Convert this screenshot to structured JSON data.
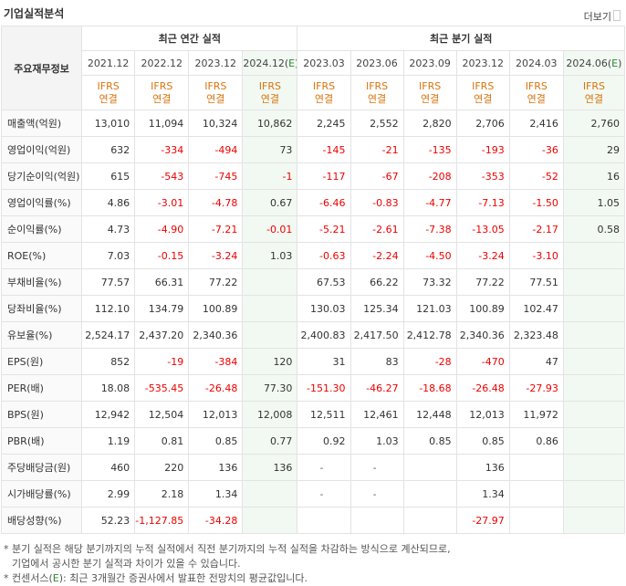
{
  "header": {
    "title": "기업실적분석",
    "more": "더보기"
  },
  "table": {
    "row_header": "주요재무정보",
    "annual_group": "최근 연간 실적",
    "quarter_group": "최근 분기 실적",
    "periods": [
      {
        "label": "2021.12",
        "estimate": false
      },
      {
        "label": "2022.12",
        "estimate": false
      },
      {
        "label": "2023.12",
        "estimate": false
      },
      {
        "label": "2024.12(E)",
        "estimate": true
      },
      {
        "label": "2023.03",
        "estimate": false
      },
      {
        "label": "2023.06",
        "estimate": false
      },
      {
        "label": "2023.09",
        "estimate": false
      },
      {
        "label": "2023.12",
        "estimate": false
      },
      {
        "label": "2024.03",
        "estimate": false
      },
      {
        "label": "2024.06(E)",
        "estimate": true
      }
    ],
    "basis_top": "IFRS",
    "basis_bottom": "연결",
    "rows": [
      {
        "label": "매출액(억원)",
        "group_start": true,
        "values": [
          "13,010",
          "11,094",
          "10,324",
          "10,862",
          "2,245",
          "2,552",
          "2,820",
          "2,706",
          "2,416",
          "2,760"
        ]
      },
      {
        "label": "영업이익(억원)",
        "group_start": false,
        "values": [
          "632",
          "-334",
          "-494",
          "73",
          "-145",
          "-21",
          "-135",
          "-193",
          "-36",
          "29"
        ]
      },
      {
        "label": "당기순이익(억원)",
        "group_start": false,
        "values": [
          "615",
          "-543",
          "-745",
          "-1",
          "-117",
          "-67",
          "-208",
          "-353",
          "-52",
          "16"
        ]
      },
      {
        "label": "영업이익률(%)",
        "group_start": true,
        "values": [
          "4.86",
          "-3.01",
          "-4.78",
          "0.67",
          "-6.46",
          "-0.83",
          "-4.77",
          "-7.13",
          "-1.50",
          "1.05"
        ]
      },
      {
        "label": "순이익률(%)",
        "group_start": false,
        "values": [
          "4.73",
          "-4.90",
          "-7.21",
          "-0.01",
          "-5.21",
          "-2.61",
          "-7.38",
          "-13.05",
          "-2.17",
          "0.58"
        ]
      },
      {
        "label": "ROE(%)",
        "group_start": false,
        "values": [
          "7.03",
          "-0.15",
          "-3.24",
          "1.03",
          "-0.63",
          "-2.24",
          "-4.50",
          "-3.24",
          "-3.10",
          ""
        ]
      },
      {
        "label": "부채비율(%)",
        "group_start": true,
        "values": [
          "77.57",
          "66.31",
          "77.22",
          "",
          "67.53",
          "66.22",
          "73.32",
          "77.22",
          "77.51",
          ""
        ]
      },
      {
        "label": "당좌비율(%)",
        "group_start": false,
        "values": [
          "112.10",
          "134.79",
          "100.89",
          "",
          "130.03",
          "125.34",
          "121.03",
          "100.89",
          "102.47",
          ""
        ]
      },
      {
        "label": "유보율(%)",
        "group_start": false,
        "values": [
          "2,524.17",
          "2,437.20",
          "2,340.36",
          "",
          "2,400.83",
          "2,417.50",
          "2,412.78",
          "2,340.36",
          "2,323.48",
          ""
        ]
      },
      {
        "label": "EPS(원)",
        "group_start": true,
        "values": [
          "852",
          "-19",
          "-384",
          "120",
          "31",
          "83",
          "-28",
          "-470",
          "47",
          ""
        ]
      },
      {
        "label": "PER(배)",
        "group_start": false,
        "values": [
          "18.08",
          "-535.45",
          "-26.48",
          "77.30",
          "-151.30",
          "-46.27",
          "-18.68",
          "-26.48",
          "-27.93",
          ""
        ]
      },
      {
        "label": "BPS(원)",
        "group_start": false,
        "values": [
          "12,942",
          "12,504",
          "12,013",
          "12,008",
          "12,511",
          "12,461",
          "12,448",
          "12,013",
          "11,972",
          ""
        ]
      },
      {
        "label": "PBR(배)",
        "group_start": false,
        "values": [
          "1.19",
          "0.81",
          "0.85",
          "0.77",
          "0.92",
          "1.03",
          "0.85",
          "0.85",
          "0.86",
          ""
        ]
      },
      {
        "label": "주당배당금(원)",
        "group_start": true,
        "values": [
          "460",
          "220",
          "136",
          "136",
          "-",
          "-",
          "",
          "136",
          "",
          ""
        ]
      },
      {
        "label": "시가배당률(%)",
        "group_start": false,
        "values": [
          "2.99",
          "2.18",
          "1.34",
          "",
          "-",
          "-",
          "",
          "1.34",
          "",
          ""
        ]
      },
      {
        "label": "배당성향(%)",
        "group_start": false,
        "values": [
          "52.23",
          "-1,127.85",
          "-34.28",
          "",
          "",
          "",
          "",
          "-27.97",
          "",
          ""
        ]
      }
    ]
  },
  "footer": {
    "note1a": "* 분기 실적은 해당 분기까지의 누적 실적에서 직전 분기까지의 누적 실적을 차감하는 방식으로 계산되므로,",
    "note1b": "기업에서 공시한 분기 실적과 차이가 있을 수 있습니다.",
    "note2_prefix": "* 컨센서스(",
    "note2_e": "E",
    "note2_suffix": "): 최근 3개월간 증권사에서 발표한 전망치의 평균값입니다."
  }
}
